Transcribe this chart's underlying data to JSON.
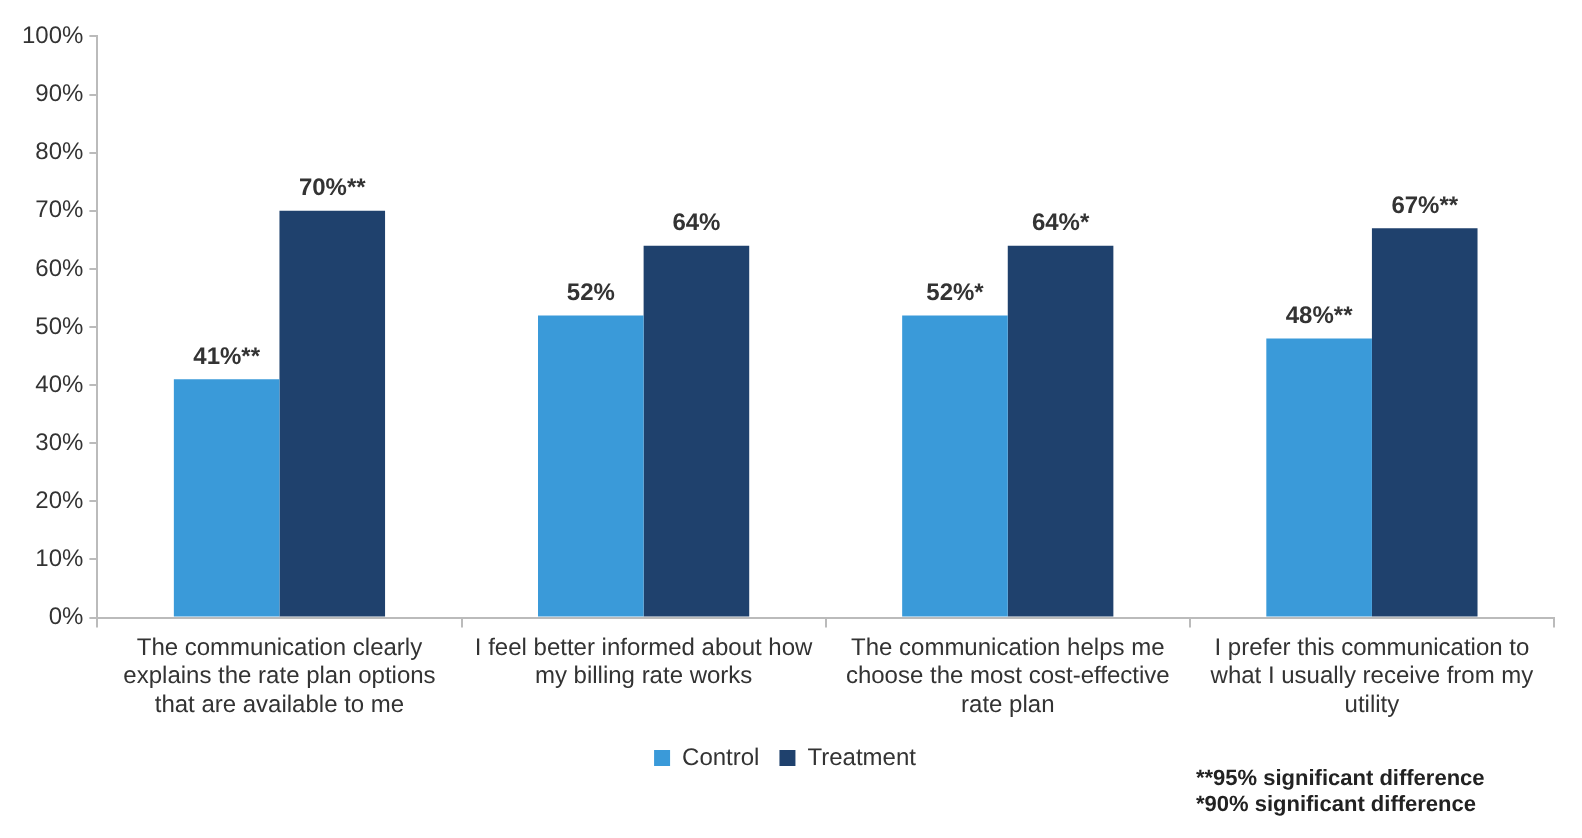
{
  "chart_data": {
    "type": "bar",
    "categories": [
      "The communication clearly explains the rate plan options that are available to me",
      "I feel better informed about how my billing rate works",
      "The communication helps me choose the most cost-effective rate plan",
      "I prefer this communication to what I usually receive from my utility"
    ],
    "series": [
      {
        "name": "Control",
        "color": "#3a9ad9",
        "values": [
          41,
          52,
          52,
          48
        ],
        "value_labels": [
          "41%**",
          "52%",
          "52%*",
          "48%**"
        ]
      },
      {
        "name": "Treatment",
        "color": "#1f416d",
        "values": [
          70,
          64,
          64,
          67
        ],
        "value_labels": [
          "70%**",
          "64%",
          "64%*",
          "67%**"
        ]
      }
    ],
    "ylim": [
      0,
      100
    ],
    "yticks": [
      {
        "value": 0,
        "label": "0%"
      },
      {
        "value": 10,
        "label": "10%"
      },
      {
        "value": 20,
        "label": "20%"
      },
      {
        "value": 30,
        "label": "30%"
      },
      {
        "value": 40,
        "label": "40%"
      },
      {
        "value": 50,
        "label": "50%"
      },
      {
        "value": 60,
        "label": "60%"
      },
      {
        "value": 70,
        "label": "70%"
      },
      {
        "value": 80,
        "label": "80%"
      },
      {
        "value": 90,
        "label": "90%"
      },
      {
        "value": 100,
        "label": "100%"
      }
    ],
    "grid": false,
    "legend": "bottom",
    "annotations": [
      "**95% significant difference",
      "*90% significant difference"
    ]
  }
}
